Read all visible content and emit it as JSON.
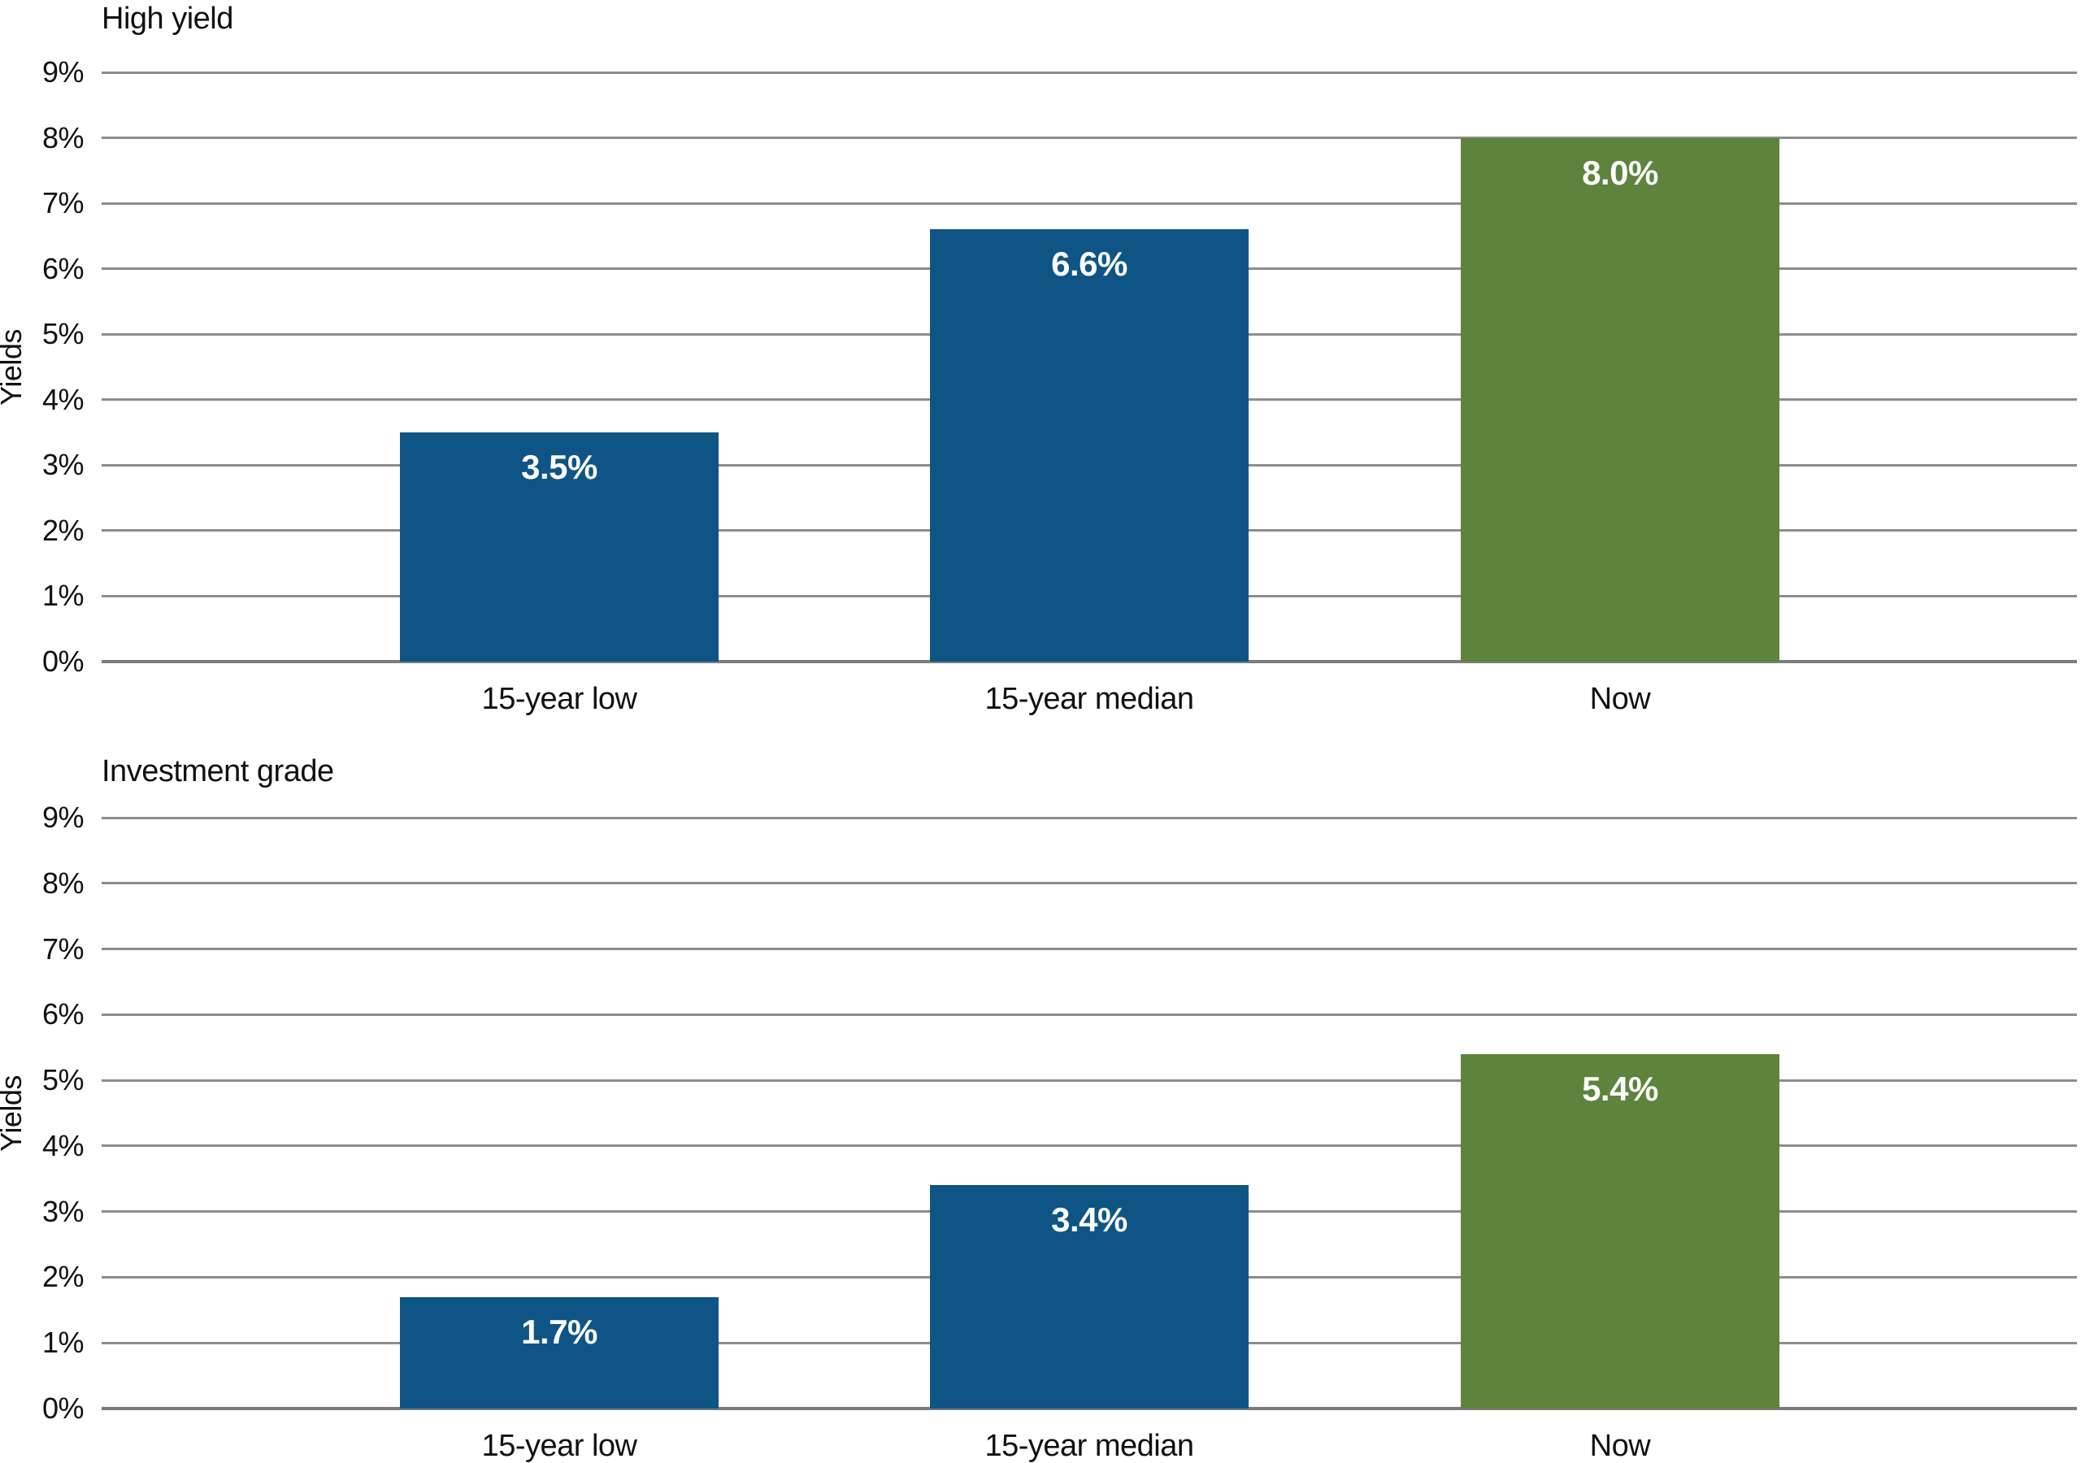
{
  "colors": {
    "background": "#ffffff",
    "bar_blue": "#0e5585",
    "bar_green": "#5d833c",
    "gridline": "#8c8c8c",
    "axis_line": "#7c7c7c",
    "value_label_text": "#ffffff",
    "text": "#111111"
  },
  "chart_data": [
    {
      "type": "bar",
      "title": "High yield",
      "ylabel": "Yields",
      "xlabel": "",
      "categories": [
        "15-year low",
        "15-year median",
        "Now"
      ],
      "values": [
        3.5,
        6.6,
        8.0
      ],
      "value_labels": [
        "3.5%",
        "6.6%",
        "8.0%"
      ],
      "bar_colors": [
        "#0e5585",
        "#0e5585",
        "#5d833c"
      ],
      "ylim": [
        0,
        9
      ],
      "ytick_values": [
        0,
        1,
        2,
        3,
        4,
        5,
        6,
        7,
        8,
        9
      ],
      "ytick_labels": [
        "0%",
        "1%",
        "2%",
        "3%",
        "4%",
        "5%",
        "6%",
        "7%",
        "8%",
        "9%"
      ],
      "grid": true,
      "legend_position": "none"
    },
    {
      "type": "bar",
      "title": "Investment grade",
      "ylabel": "Yields",
      "xlabel": "",
      "categories": [
        "15-year low",
        "15-year median",
        "Now"
      ],
      "values": [
        1.7,
        3.4,
        5.4
      ],
      "value_labels": [
        "1.7%",
        "3.4%",
        "5.4%"
      ],
      "bar_colors": [
        "#0e5585",
        "#0e5585",
        "#5d833c"
      ],
      "ylim": [
        0,
        9
      ],
      "ytick_values": [
        0,
        1,
        2,
        3,
        4,
        5,
        6,
        7,
        8,
        9
      ],
      "ytick_labels": [
        "0%",
        "1%",
        "2%",
        "3%",
        "4%",
        "5%",
        "6%",
        "7%",
        "8%",
        "9%"
      ],
      "grid": true,
      "legend_position": "none"
    }
  ]
}
